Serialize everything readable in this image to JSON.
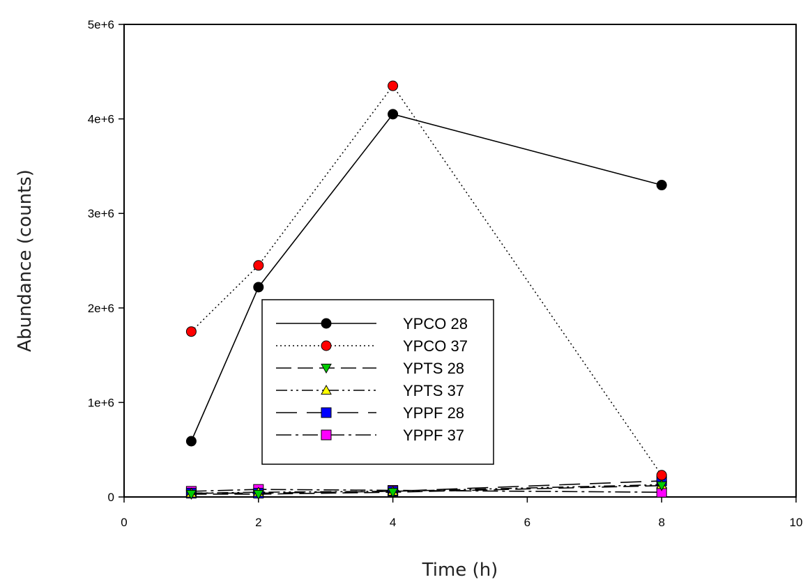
{
  "chart_data": {
    "type": "line",
    "title": "",
    "xlabel": "Time (h)",
    "ylabel": "Abundance (counts)",
    "xlim": [
      0,
      10
    ],
    "ylim": [
      0,
      5000000
    ],
    "xticks": [
      0,
      2,
      4,
      6,
      8,
      10
    ],
    "xtick_labels": [
      "0",
      "2",
      "4",
      "6",
      "8",
      "10"
    ],
    "yticks": [
      0,
      1000000,
      2000000,
      3000000,
      4000000,
      5000000
    ],
    "ytick_labels": [
      "0",
      "1e+6",
      "2e+6",
      "3e+6",
      "4e+6",
      "5e+6"
    ],
    "grid": false,
    "legend_position": "center",
    "series": [
      {
        "name": "YPCO 28",
        "x": [
          1,
          2,
          4,
          8
        ],
        "y": [
          590000,
          2220000,
          4050000,
          3300000
        ],
        "marker": "circle",
        "line": "solid",
        "color": "#000000"
      },
      {
        "name": "YPCO 37",
        "x": [
          1,
          2,
          4,
          8
        ],
        "y": [
          1750000,
          2450000,
          4350000,
          230000
        ],
        "marker": "circle",
        "line": "dotted",
        "color": "#ff0000"
      },
      {
        "name": "YPTS 28",
        "x": [
          1,
          2,
          4,
          8
        ],
        "y": [
          30000,
          30000,
          50000,
          120000
        ],
        "marker": "triangle-down",
        "line": "dashed",
        "color": "#00cc00"
      },
      {
        "name": "YPTS 37",
        "x": [
          1,
          2,
          4,
          8
        ],
        "y": [
          40000,
          50000,
          60000,
          130000
        ],
        "marker": "triangle-up",
        "line": "dash-dot-dot",
        "color": "#ffff00"
      },
      {
        "name": "YPPF 28",
        "x": [
          1,
          2,
          4,
          8
        ],
        "y": [
          40000,
          40000,
          60000,
          170000
        ],
        "marker": "square",
        "line": "long-dash",
        "color": "#0000ff"
      },
      {
        "name": "YPPF 37",
        "x": [
          1,
          2,
          4,
          8
        ],
        "y": [
          60000,
          80000,
          70000,
          50000
        ],
        "marker": "square",
        "line": "dash-dot",
        "color": "#ff00ff"
      }
    ]
  }
}
